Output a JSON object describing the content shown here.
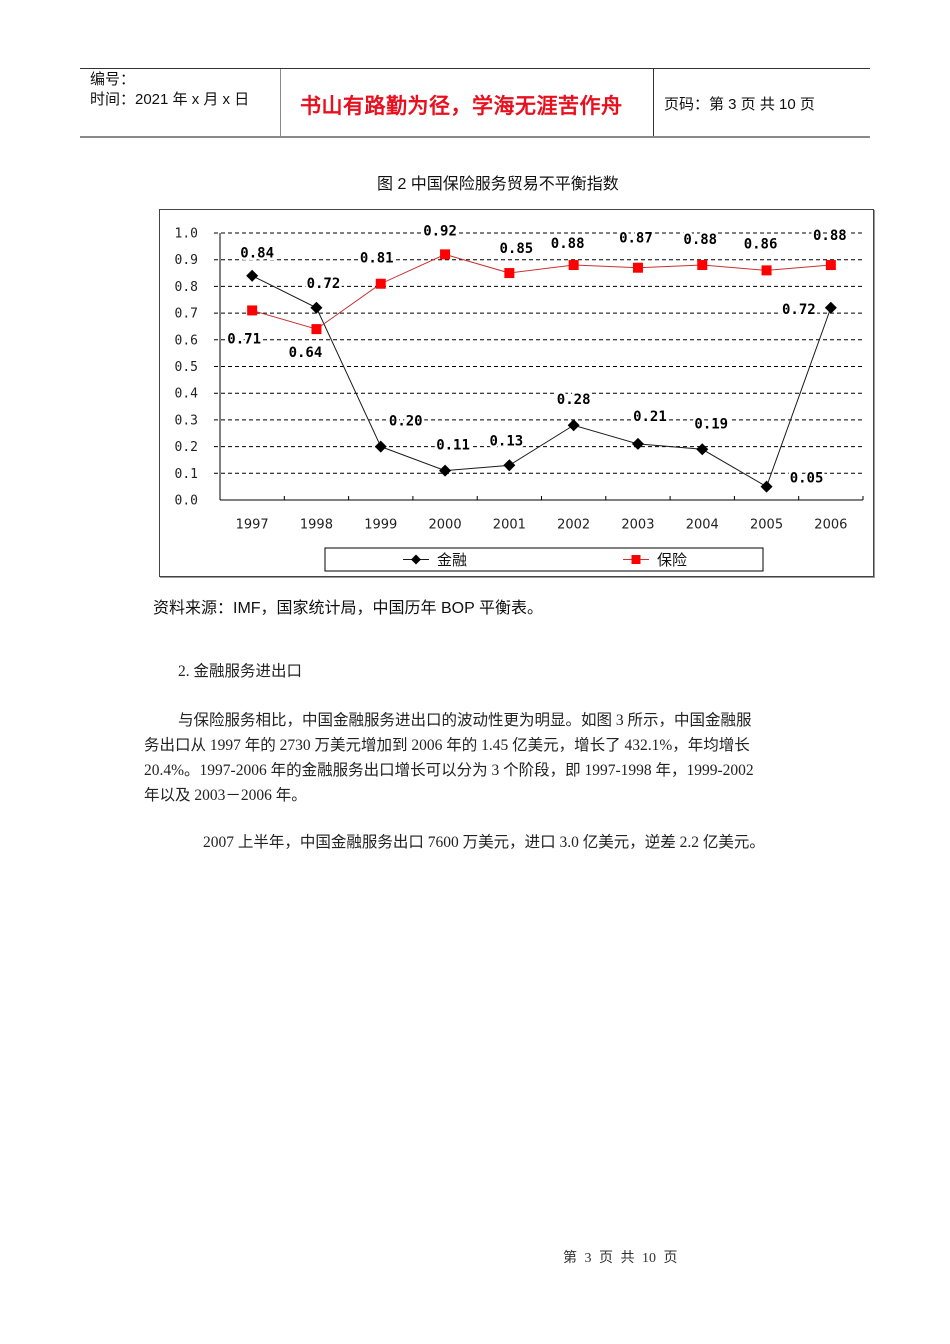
{
  "header": {
    "number_label": "编号：",
    "date_label": "时间：2021 年 x 月 x 日",
    "motto": "书山有路勤为径，学海无涯苦作舟",
    "page_info": "页码：第 3 页  共 10 页"
  },
  "figure": {
    "title": "图 2  中国保险服务贸易不平衡指数",
    "source": "资料来源：IMF，国家统计局，中国历年 BOP 平衡表。"
  },
  "chart_data": {
    "type": "line",
    "title": "图 2  中国保险服务贸易不平衡指数",
    "xlabel": "",
    "ylabel": "",
    "categories": [
      "1997",
      "1998",
      "1999",
      "2000",
      "2001",
      "2002",
      "2003",
      "2004",
      "2005",
      "2006"
    ],
    "ylim": [
      0.0,
      1.0
    ],
    "yticks": [
      "0.0",
      "0.1",
      "0.2",
      "0.3",
      "0.4",
      "0.5",
      "0.6",
      "0.7",
      "0.8",
      "0.9",
      "1.0"
    ],
    "grid": true,
    "legend_position": "bottom",
    "series": [
      {
        "name": "金融",
        "marker": "diamond",
        "color": "#000000",
        "line_color": "#1a1a1a",
        "values": [
          0.84,
          0.72,
          0.2,
          0.11,
          0.13,
          0.28,
          0.21,
          0.19,
          0.05,
          0.72
        ],
        "labels": [
          "0.84",
          "0.72",
          "0.20",
          "0.11",
          "0.13",
          "0.28",
          "0.21",
          "0.19",
          "0.05",
          "0.72"
        ]
      },
      {
        "name": "保险",
        "marker": "square",
        "color": "#ff0000",
        "line_color": "#c83232",
        "values": [
          0.71,
          0.64,
          0.81,
          0.92,
          0.85,
          0.88,
          0.87,
          0.88,
          0.86,
          0.88
        ],
        "labels": [
          "0.71",
          "0.64",
          "0.81",
          "0.92",
          "0.85",
          "0.88",
          "0.87",
          "0.88",
          "0.86",
          "0.88"
        ]
      }
    ]
  },
  "chart_layout": {
    "label_offsets": [
      [
        [
          5,
          -22
        ],
        [
          7,
          -24
        ],
        [
          25,
          -25
        ],
        [
          8,
          -25
        ],
        [
          -3,
          -24
        ],
        [
          0,
          -25
        ],
        [
          12,
          -27
        ],
        [
          9,
          -25
        ],
        [
          40,
          -8
        ],
        [
          -32,
          2
        ]
      ],
      [
        [
          -8,
          29
        ],
        [
          -11,
          24
        ],
        [
          -4,
          -25
        ],
        [
          -5,
          -23
        ],
        [
          7,
          -24
        ],
        [
          -6,
          -21
        ],
        [
          -2,
          -29
        ],
        [
          -2,
          -25
        ],
        [
          -6,
          -26
        ],
        [
          -1,
          -29
        ]
      ]
    ]
  },
  "section": {
    "heading": "2.  金融服务进出口",
    "paragraph1_lines": [
      "与保险服务相比，中国金融服务进出口的波动性更为明显。如图 3 所示，中国金融服",
      "务出口从 1997 年的 2730 万美元增加到 2006 年的 1.45 亿美元，增长了 432.1%，年均增长",
      "20.4%。1997-2006 年的金融服务出口增长可以分为 3 个阶段，即 1997-1998 年，1999-2002",
      "年以及 2003－2006 年。"
    ],
    "paragraph2": "2007 上半年，中国金融服务出口 7600 万美元，进口 3.0 亿美元，逆差 2.2 亿美元。"
  },
  "footer": {
    "page_text": "第 3 页 共 10 页"
  }
}
